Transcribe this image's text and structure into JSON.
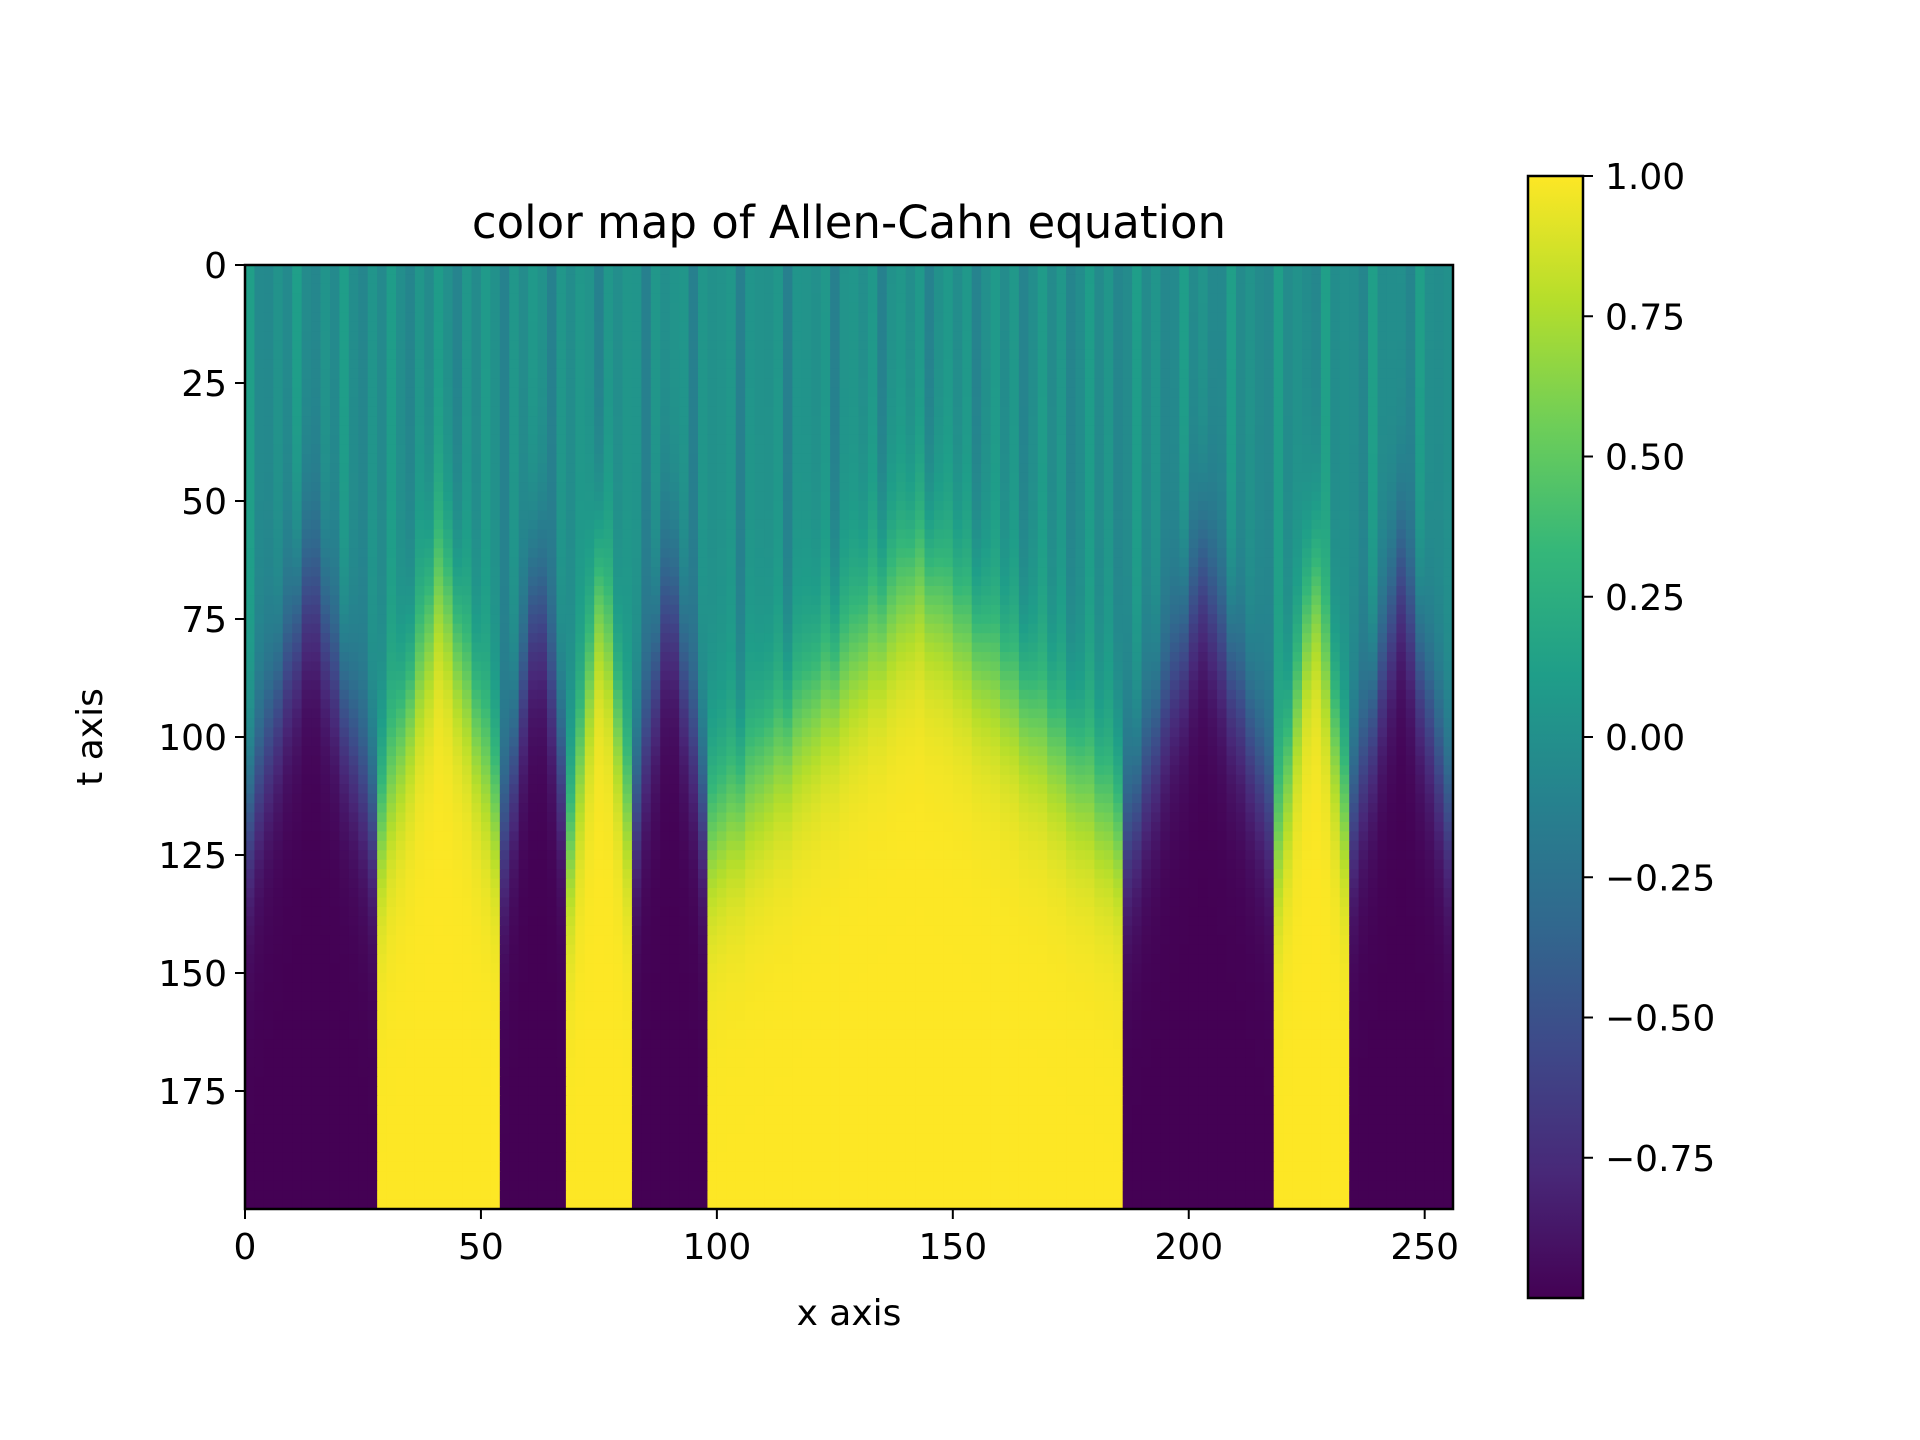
{
  "chart_data": {
    "type": "heatmap",
    "title": "color map of Allen-Cahn equation",
    "xlabel": "x axis",
    "ylabel": "t axis",
    "xlim": [
      0,
      256
    ],
    "ylim": [
      200,
      0
    ],
    "x_ticks": [
      0,
      50,
      100,
      150,
      200,
      250
    ],
    "x_tick_labels": [
      "0",
      "50",
      "100",
      "150",
      "200",
      "250"
    ],
    "y_ticks": [
      0,
      25,
      50,
      75,
      100,
      125,
      150,
      175
    ],
    "y_tick_labels": [
      "0",
      "25",
      "50",
      "75",
      "100",
      "125",
      "150",
      "175"
    ],
    "colorbar": {
      "colormap": "viridis",
      "vmin": -1.0,
      "vmax": 1.0,
      "ticks": [
        1.0,
        0.75,
        0.5,
        0.25,
        0.0,
        -0.25,
        -0.5,
        -0.75
      ],
      "tick_labels": [
        "1.00",
        "0.75",
        "0.50",
        "0.25",
        "0.00",
        "−0.25",
        "−0.50",
        "−0.75"
      ]
    },
    "final_state_x_intervals": [
      {
        "x_start": 0,
        "x_end": 28,
        "value": -1
      },
      {
        "x_start": 28,
        "x_end": 55,
        "value": 1
      },
      {
        "x_start": 55,
        "x_end": 69,
        "value": -1
      },
      {
        "x_start": 69,
        "x_end": 82,
        "value": 1
      },
      {
        "x_start": 82,
        "x_end": 98,
        "value": -1
      },
      {
        "x_start": 98,
        "x_end": 187,
        "value": 1
      },
      {
        "x_start": 187,
        "x_end": 219,
        "value": -1
      },
      {
        "x_start": 219,
        "x_end": 234,
        "value": 1
      },
      {
        "x_start": 234,
        "x_end": 256,
        "value": -1
      }
    ],
    "initial_value": 0.0,
    "colormap_stops": [
      "#440154",
      "#482878",
      "#3e4989",
      "#31688e",
      "#26828e",
      "#1f9e89",
      "#35b779",
      "#6ece58",
      "#b5de2b",
      "#fde725"
    ]
  }
}
